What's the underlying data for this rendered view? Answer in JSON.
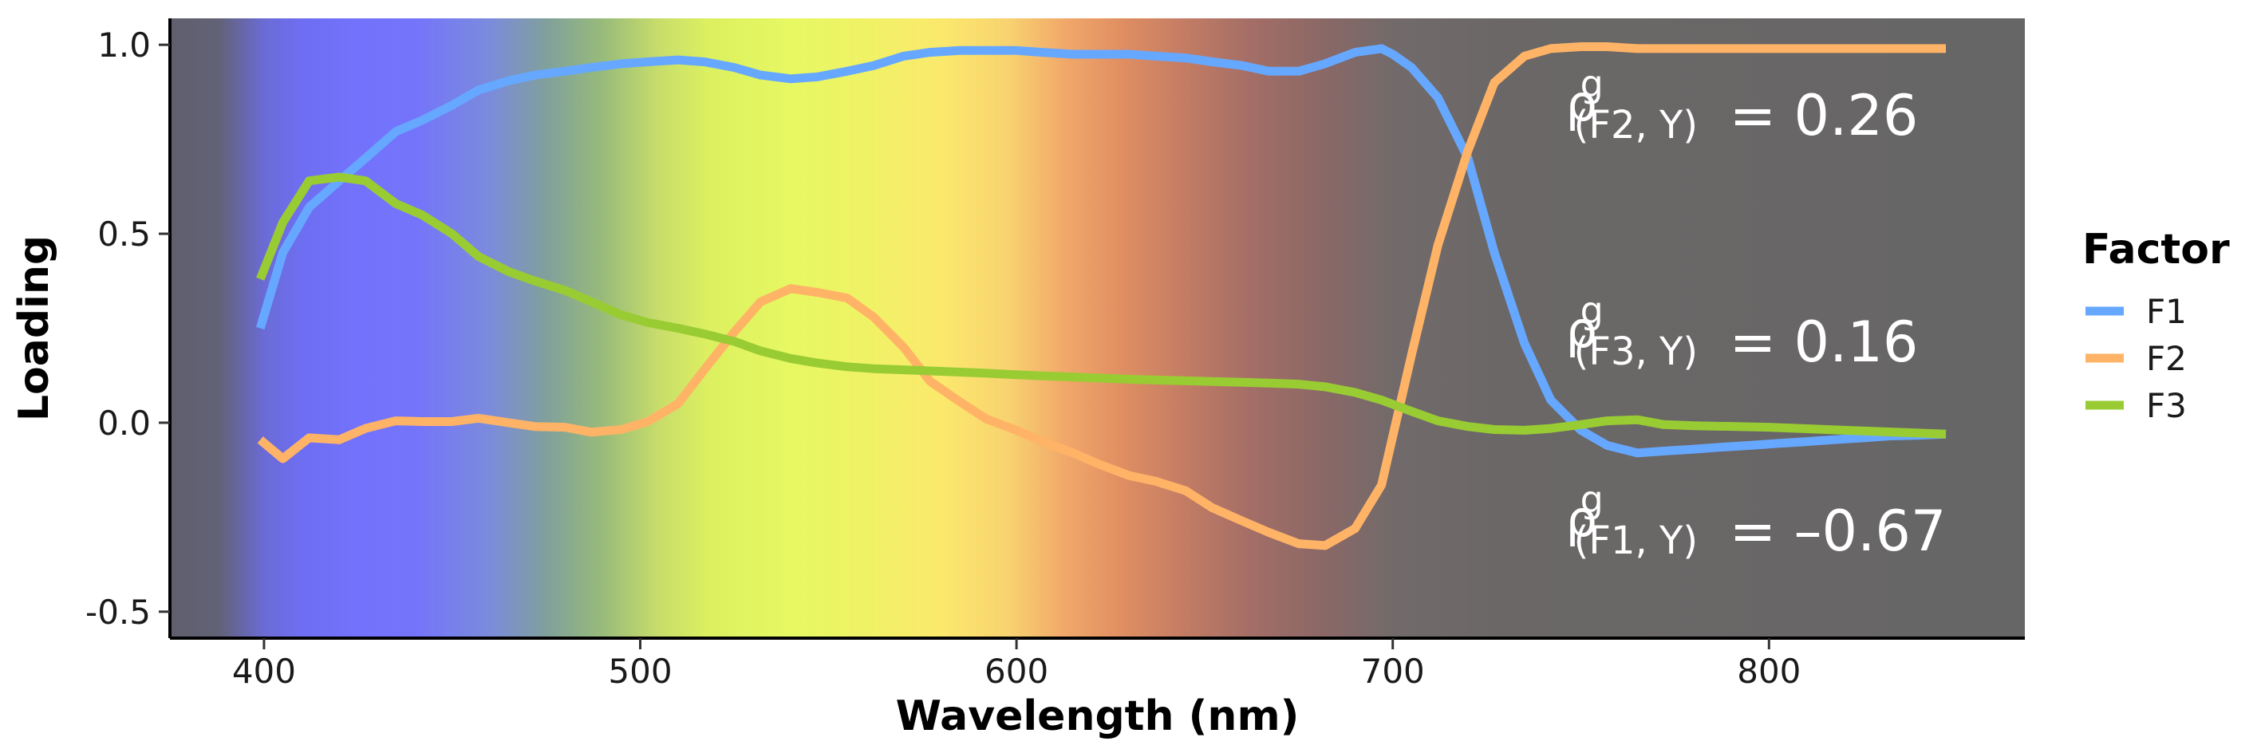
{
  "chart_data": {
    "type": "line",
    "xlabel": "Wavelength (nm)",
    "ylabel": "Loading",
    "xlim": [
      375,
      868
    ],
    "ylim": [
      -0.57,
      1.07
    ],
    "x_ticks": [
      400,
      500,
      600,
      700,
      800
    ],
    "x_tick_labels": [
      "400",
      "500",
      "600",
      "700",
      "800"
    ],
    "y_ticks": [
      1.0,
      0.5,
      0.0,
      -0.5
    ],
    "y_tick_labels": [
      "1.0",
      "0.5",
      "0.0",
      "-0.5"
    ],
    "grid": false,
    "panel_background": "#666666",
    "background_gradient": [
      [
        375,
        "#5f5f6e"
      ],
      [
        388,
        "#626276"
      ],
      [
        400,
        "#6b6bd6"
      ],
      [
        410,
        "#6e6ef2"
      ],
      [
        425,
        "#7272fc"
      ],
      [
        440,
        "#7474fb"
      ],
      [
        460,
        "#7b8bdc"
      ],
      [
        475,
        "#80a09c"
      ],
      [
        490,
        "#98bb7a"
      ],
      [
        505,
        "#c8dd6a"
      ],
      [
        518,
        "#dcf060"
      ],
      [
        540,
        "#e6f862"
      ],
      [
        560,
        "#f0f266"
      ],
      [
        580,
        "#fbe96c"
      ],
      [
        598,
        "#f8d270"
      ],
      [
        612,
        "#f2aa6a"
      ],
      [
        628,
        "#e08e62"
      ],
      [
        645,
        "#c27c64"
      ],
      [
        662,
        "#a46e66"
      ],
      [
        680,
        "#8c6866"
      ],
      [
        700,
        "#726a6a"
      ],
      [
        730,
        "#6b6767"
      ],
      [
        868,
        "#666666"
      ]
    ],
    "series": [
      {
        "name": "F1",
        "color": "#66a8ff",
        "x": [
          399,
          405,
          412,
          420,
          427,
          435,
          442,
          450,
          457,
          465,
          472,
          480,
          487,
          495,
          502,
          510,
          517,
          525,
          532,
          540,
          547,
          555,
          562,
          570,
          577,
          585,
          592,
          600,
          607,
          615,
          622,
          630,
          637,
          645,
          652,
          660,
          667,
          675,
          682,
          690,
          697,
          700,
          705,
          712,
          720,
          727,
          735,
          742,
          750,
          757,
          765,
          772,
          780,
          787,
          795,
          802,
          810,
          817,
          825,
          832,
          840,
          847
        ],
        "y": [
          0.25,
          0.45,
          0.57,
          0.64,
          0.7,
          0.77,
          0.8,
          0.84,
          0.88,
          0.905,
          0.92,
          0.93,
          0.94,
          0.95,
          0.955,
          0.96,
          0.955,
          0.94,
          0.92,
          0.91,
          0.915,
          0.93,
          0.945,
          0.97,
          0.98,
          0.985,
          0.985,
          0.985,
          0.98,
          0.975,
          0.975,
          0.975,
          0.97,
          0.965,
          0.955,
          0.945,
          0.93,
          0.93,
          0.95,
          0.98,
          0.99,
          0.975,
          0.94,
          0.86,
          0.7,
          0.45,
          0.21,
          0.06,
          -0.02,
          -0.06,
          -0.08,
          -0.075,
          -0.07,
          -0.065,
          -0.06,
          -0.055,
          -0.05,
          -0.045,
          -0.04,
          -0.035,
          -0.033,
          -0.03
        ]
      },
      {
        "name": "F2",
        "color": "#ffb366",
        "x": [
          399,
          405,
          412,
          420,
          427,
          435,
          442,
          450,
          457,
          465,
          472,
          480,
          487,
          495,
          502,
          510,
          517,
          525,
          532,
          540,
          547,
          555,
          562,
          570,
          577,
          585,
          592,
          600,
          607,
          615,
          622,
          630,
          637,
          645,
          652,
          660,
          667,
          675,
          682,
          690,
          697,
          705,
          712,
          720,
          727,
          735,
          742,
          750,
          757,
          765,
          772,
          780,
          800,
          820,
          847
        ],
        "y": [
          -0.045,
          -0.095,
          -0.04,
          -0.045,
          -0.015,
          0.005,
          0.003,
          0.003,
          0.012,
          0.0,
          -0.01,
          -0.012,
          -0.025,
          -0.018,
          0.003,
          0.05,
          0.14,
          0.24,
          0.32,
          0.355,
          0.345,
          0.33,
          0.28,
          0.2,
          0.11,
          0.055,
          0.01,
          -0.02,
          -0.05,
          -0.08,
          -0.11,
          -0.14,
          -0.155,
          -0.18,
          -0.225,
          -0.26,
          -0.29,
          -0.32,
          -0.325,
          -0.28,
          -0.165,
          0.18,
          0.47,
          0.72,
          0.9,
          0.97,
          0.99,
          0.995,
          0.995,
          0.99,
          0.99,
          0.99,
          0.99,
          0.99,
          0.99
        ]
      },
      {
        "name": "F3",
        "color": "#99cc33",
        "x": [
          399,
          405,
          412,
          420,
          427,
          435,
          442,
          450,
          457,
          465,
          472,
          480,
          487,
          495,
          502,
          510,
          517,
          525,
          532,
          540,
          547,
          555,
          562,
          570,
          577,
          585,
          592,
          600,
          607,
          615,
          622,
          630,
          637,
          645,
          652,
          660,
          667,
          675,
          682,
          690,
          697,
          705,
          712,
          720,
          727,
          735,
          742,
          750,
          757,
          765,
          772,
          780,
          800,
          820,
          847
        ],
        "y": [
          0.38,
          0.53,
          0.64,
          0.65,
          0.64,
          0.58,
          0.55,
          0.5,
          0.44,
          0.4,
          0.375,
          0.35,
          0.32,
          0.285,
          0.265,
          0.25,
          0.235,
          0.215,
          0.19,
          0.17,
          0.158,
          0.148,
          0.143,
          0.14,
          0.137,
          0.134,
          0.131,
          0.127,
          0.124,
          0.121,
          0.118,
          0.115,
          0.113,
          0.111,
          0.109,
          0.107,
          0.105,
          0.102,
          0.095,
          0.08,
          0.06,
          0.03,
          0.005,
          -0.01,
          -0.018,
          -0.02,
          -0.015,
          -0.005,
          0.005,
          0.008,
          -0.005,
          -0.008,
          -0.012,
          -0.02,
          -0.03
        ]
      }
    ],
    "legend": {
      "title": "Factor",
      "placement": "right",
      "entries": [
        {
          "label": "F1",
          "color": "#66a8ff"
        },
        {
          "label": "F2",
          "color": "#ffb366"
        },
        {
          "label": "F3",
          "color": "#99cc33"
        }
      ]
    },
    "annotations": [
      {
        "rho": "ρ",
        "sup": "g",
        "sub": "(F2, Y)",
        "value": "= 0.26",
        "x": 746,
        "y": 0.8
      },
      {
        "rho": "ρ",
        "sup": "g",
        "sub": "(F3, Y)",
        "value": "= 0.16",
        "x": 746,
        "y": 0.2
      },
      {
        "rho": "ρ",
        "sup": "g",
        "sub": "(F1, Y)",
        "value": "= –0.67",
        "x": 746,
        "y": -0.3
      }
    ]
  }
}
